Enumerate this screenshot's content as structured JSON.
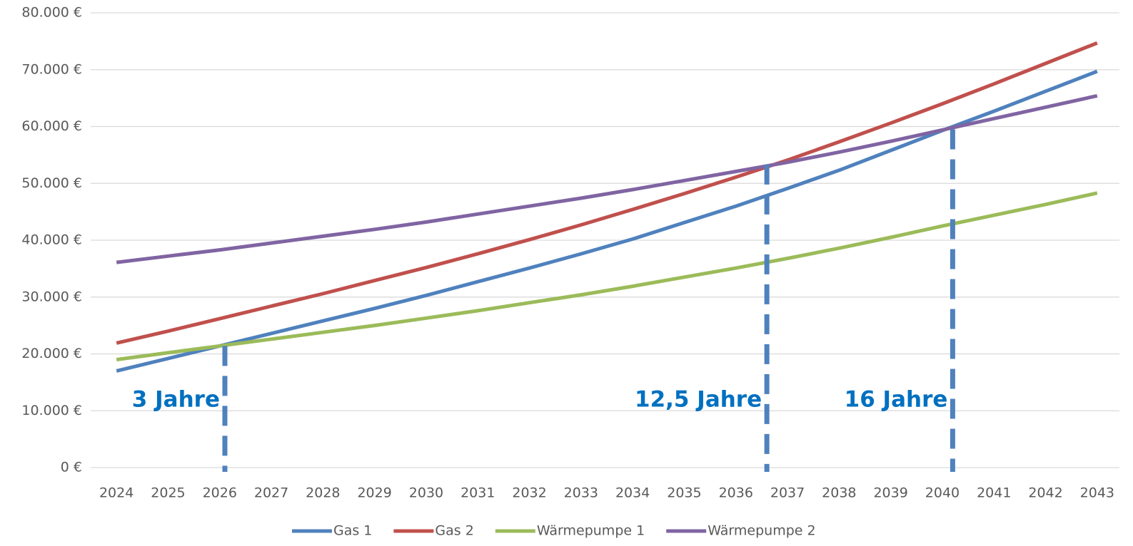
{
  "chart_data": {
    "type": "line",
    "x": [
      2024,
      2025,
      2026,
      2027,
      2028,
      2029,
      2030,
      2031,
      2032,
      2033,
      2034,
      2035,
      2036,
      2037,
      2038,
      2039,
      2040,
      2041,
      2042,
      2043
    ],
    "xlim": [
      2023.5,
      2043.5
    ],
    "ylim": [
      0,
      80000
    ],
    "yticks": [
      {
        "value": 0,
        "label": "0 €"
      },
      {
        "value": 10000,
        "label": "10.000 €"
      },
      {
        "value": 20000,
        "label": "20.000 €"
      },
      {
        "value": 30000,
        "label": "30.000 €"
      },
      {
        "value": 40000,
        "label": "40.000 €"
      },
      {
        "value": 50000,
        "label": "50.000 €"
      },
      {
        "value": 60000,
        "label": "60.000 €"
      },
      {
        "value": 70000,
        "label": "70.000 €"
      },
      {
        "value": 80000,
        "label": "80.000 €"
      }
    ],
    "grid": true,
    "legend": "bottom",
    "series": [
      {
        "name": "Gas 1",
        "color": "#4f81bd",
        "values": [
          17000,
          19200,
          21400,
          23600,
          25800,
          28000,
          30300,
          32700,
          35100,
          37600,
          40200,
          43100,
          46000,
          49100,
          52300,
          55800,
          59300,
          62700,
          66200,
          69700
        ]
      },
      {
        "name": "Gas 2",
        "color": "#c0504d",
        "values": [
          21900,
          24000,
          26200,
          28400,
          30600,
          32900,
          35200,
          37600,
          40100,
          42700,
          45400,
          48200,
          51100,
          54100,
          57300,
          60600,
          64000,
          67500,
          71100,
          74700
        ]
      },
      {
        "name": "Wärmepumpe 1",
        "color": "#9bbb59",
        "values": [
          19000,
          20200,
          21400,
          22600,
          23800,
          25000,
          26300,
          27600,
          29000,
          30400,
          31900,
          33500,
          35100,
          36800,
          38600,
          40500,
          42500,
          44400,
          46300,
          48300
        ]
      },
      {
        "name": "Wärmepumpe 2",
        "color": "#8064a2",
        "values": [
          36100,
          37200,
          38300,
          39500,
          40700,
          41900,
          43200,
          44600,
          46000,
          47400,
          48900,
          50500,
          52100,
          53700,
          55500,
          57400,
          59400,
          61400,
          63400,
          65400
        ]
      }
    ],
    "annotations": [
      {
        "label": "3 Jahre",
        "x": 2026.1,
        "y": 21400,
        "color": "#0070c0"
      },
      {
        "label": "12,5 Jahre",
        "x": 2036.6,
        "y": 53300,
        "color": "#0070c0"
      },
      {
        "label": "16 Jahre",
        "x": 2040.2,
        "y": 59500,
        "color": "#0070c0"
      }
    ]
  }
}
